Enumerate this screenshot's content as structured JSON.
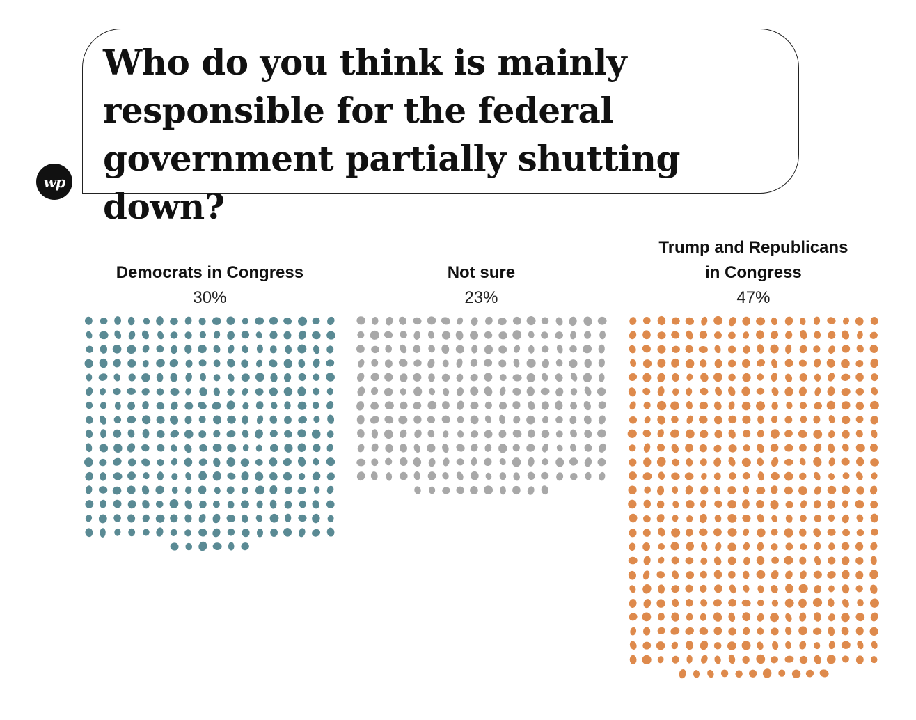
{
  "header": {
    "title": "Who do you think is mainly responsible for the federal government partially shutting down?",
    "logo_text": "wp",
    "logo_icon": "washington-post-logo-icon"
  },
  "chart_data": {
    "type": "waffle",
    "title": "Who do you think is mainly responsible for the federal government partially shutting down?",
    "categories": [
      {
        "label_lines": [
          "Democrats in Congress"
        ],
        "value": 30,
        "value_label": "30%",
        "color": "#5a8a94",
        "dot_count": 294
      },
      {
        "label_lines": [
          "Not sure"
        ],
        "value": 23,
        "value_label": "23%",
        "color": "#a8a8a8",
        "dot_count": 226
      },
      {
        "label_lines": [
          "Trump and Republicans",
          "in Congress"
        ],
        "value": 47,
        "value_label": "47%",
        "color": "#de8a4c",
        "dot_count": 461
      }
    ],
    "dots_per_row": 18,
    "legend": "none",
    "grid": false
  }
}
